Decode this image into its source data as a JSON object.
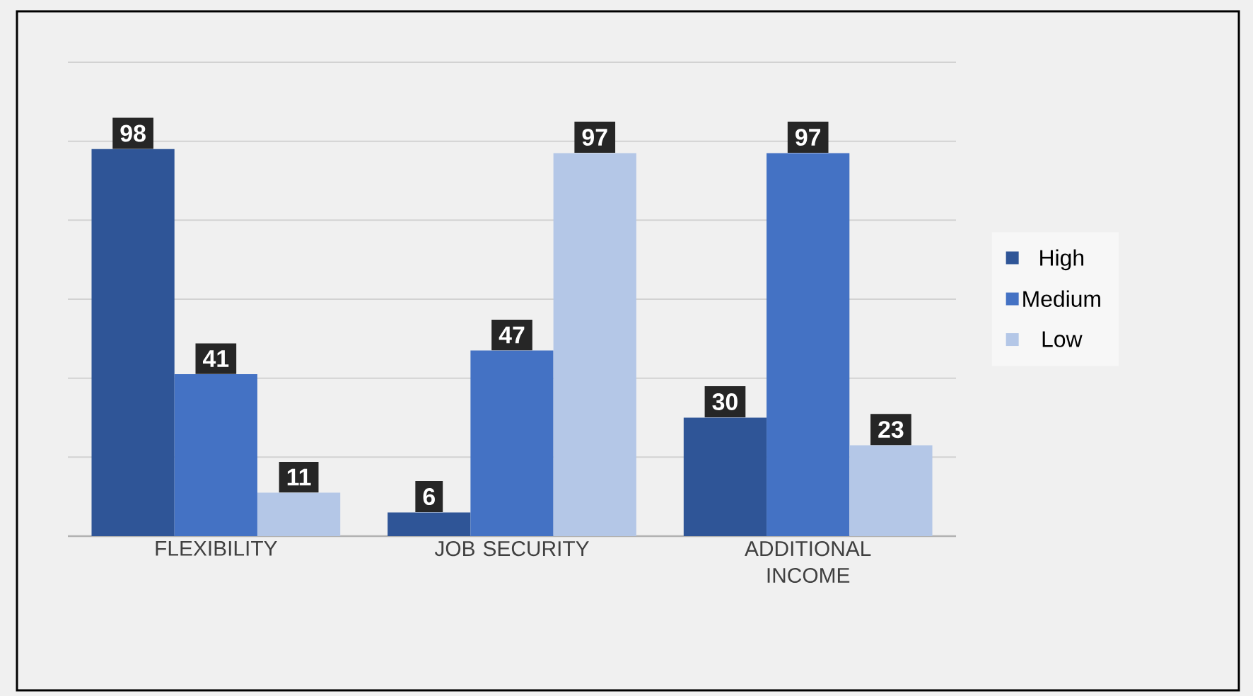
{
  "chart_data": {
    "type": "bar",
    "categories": [
      "FLEXIBILITY",
      "JOB SECURITY",
      "ADDITIONAL INCOME"
    ],
    "series": [
      {
        "name": "High",
        "color": "#2f5597",
        "values": [
          98,
          6,
          30
        ]
      },
      {
        "name": "Medium",
        "color": "#4472c4",
        "values": [
          41,
          47,
          97
        ]
      },
      {
        "name": "Low",
        "color": "#b4c7e7",
        "values": [
          11,
          97,
          23
        ]
      }
    ],
    "ylim": [
      0,
      120
    ],
    "yticks": [
      {
        "value": 0,
        "label": null
      },
      {
        "value": 20,
        "label": null
      },
      {
        "value": 40,
        "label": null
      },
      {
        "value": 60,
        "label": null
      },
      {
        "value": 80,
        "label": null
      },
      {
        "value": 100,
        "label": null
      },
      {
        "value": 120,
        "label": null
      }
    ],
    "tick_labels": "x",
    "grid": "y",
    "legend": "right",
    "data_labels": true
  }
}
